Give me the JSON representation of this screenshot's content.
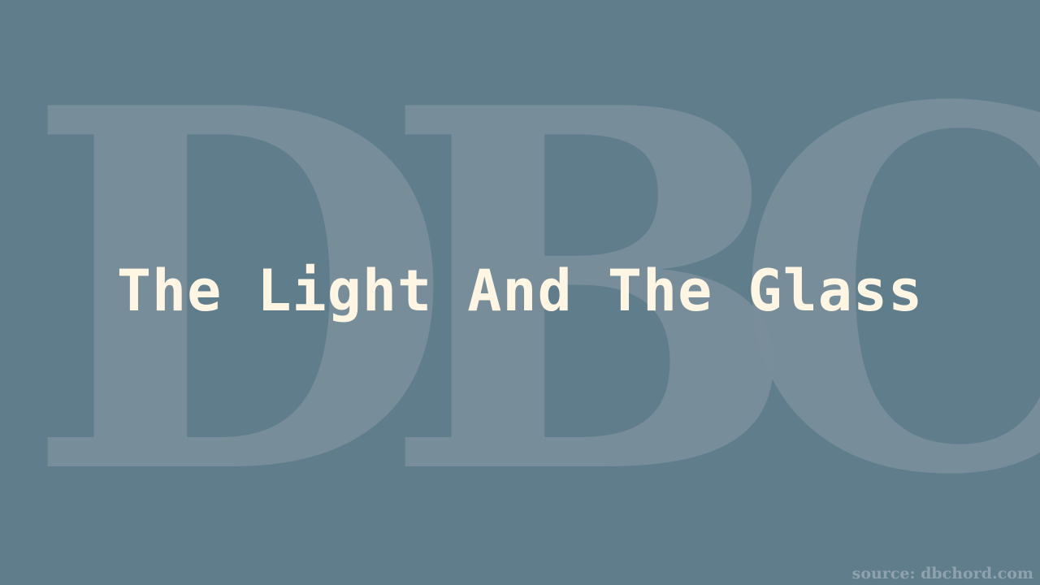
{
  "watermark": {
    "letters": [
      "D",
      "B",
      "C"
    ]
  },
  "title": "The Light And The Glass",
  "source": "source: dbchord.com",
  "colors": {
    "background": "#607d8c",
    "watermark": "#7a8f9b",
    "title": "#fff5e3",
    "source": "#8fa3ae"
  }
}
